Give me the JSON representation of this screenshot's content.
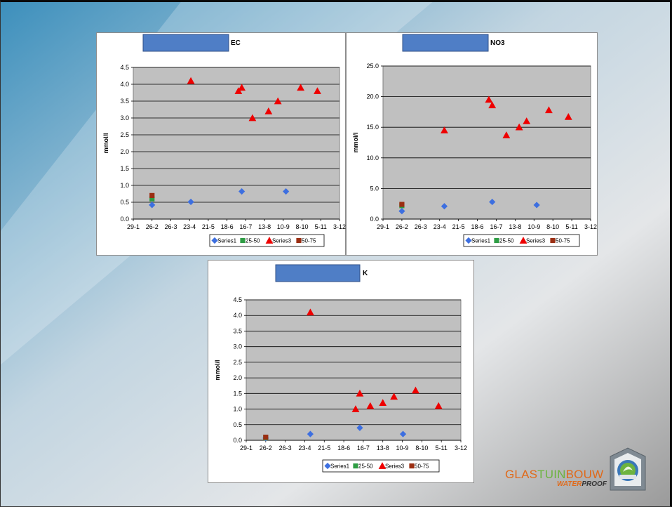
{
  "colors": {
    "plot_bg": "#c0c0c0",
    "grid": "#000000",
    "series1": "#3d6fe0",
    "series2": "#2e9d44",
    "series3": "#ee0000",
    "series4": "#9b2e12",
    "title_box": "#4f7ec6",
    "logo_orange": "#e06a1a",
    "logo_green": "#6cb33f"
  },
  "logo": {
    "part1": "GLAS",
    "part2": "TUIN",
    "part3": "BOUW",
    "part4": "WATER",
    "part5": "PROOF"
  },
  "chart_data": [
    {
      "type": "scatter",
      "title": "EC",
      "ylabel": "mmol/l",
      "ylim": [
        0,
        4.5
      ],
      "yticks": [
        "0.0",
        "0.5",
        "1.0",
        "1.5",
        "2.0",
        "2.5",
        "3.0",
        "3.5",
        "4.0",
        "4.5"
      ],
      "xlim": [
        "29-1",
        "3-12"
      ],
      "xticks": [
        "29-1",
        "26-2",
        "26-3",
        "23-4",
        "21-5",
        "18-6",
        "16-7",
        "13-8",
        "10-9",
        "8-10",
        "5-11",
        "3-12"
      ],
      "legend_position": "bottom",
      "series": [
        {
          "name": "Series1",
          "marker": "diamond",
          "points": [
            [
              "26-2",
              0.42
            ],
            [
              "25-4",
              0.51
            ],
            [
              "10-7",
              0.82
            ],
            [
              "14-9",
              0.82
            ]
          ]
        },
        {
          "name": "25-50",
          "marker": "square",
          "points": [
            [
              "26-2",
              0.6
            ]
          ]
        },
        {
          "name": "Series3",
          "marker": "triangle",
          "points": [
            [
              "25-4",
              4.1
            ],
            [
              "5-7",
              3.8
            ],
            [
              "10-7",
              3.9
            ],
            [
              "26-7",
              3.0
            ],
            [
              "19-8",
              3.2
            ],
            [
              "2-9",
              3.5
            ],
            [
              "6-10",
              3.9
            ],
            [
              "31-10",
              3.8
            ]
          ]
        },
        {
          "name": "50-75",
          "marker": "square",
          "points": [
            [
              "26-2",
              0.7
            ]
          ]
        }
      ]
    },
    {
      "type": "scatter",
      "title": "NO3",
      "ylabel": "mmol/l",
      "ylim": [
        0,
        25
      ],
      "yticks": [
        "0.0",
        "5.0",
        "10.0",
        "15.0",
        "20.0",
        "25.0"
      ],
      "xlim": [
        "29-1",
        "3-12"
      ],
      "xticks": [
        "29-1",
        "26-2",
        "26-3",
        "23-4",
        "21-5",
        "18-6",
        "16-7",
        "13-8",
        "10-9",
        "8-10",
        "5-11",
        "3-12"
      ],
      "legend_position": "bottom",
      "series": [
        {
          "name": "Series1",
          "marker": "diamond",
          "points": [
            [
              "26-2",
              1.3
            ],
            [
              "30-4",
              2.1
            ],
            [
              "10-7",
              2.8
            ],
            [
              "14-9",
              2.3
            ]
          ]
        },
        {
          "name": "25-50",
          "marker": "square",
          "points": [
            [
              "26-2",
              2.2
            ]
          ]
        },
        {
          "name": "Series3",
          "marker": "triangle",
          "points": [
            [
              "30-4",
              14.5
            ],
            [
              "5-7",
              19.5
            ],
            [
              "10-7",
              18.6
            ],
            [
              "31-7",
              13.7
            ],
            [
              "19-8",
              15.0
            ],
            [
              "30-8",
              16.0
            ],
            [
              "2-10",
              17.8
            ],
            [
              "31-10",
              16.7
            ]
          ]
        },
        {
          "name": "50-75",
          "marker": "square",
          "points": [
            [
              "26-2",
              2.4
            ]
          ]
        }
      ]
    },
    {
      "type": "scatter",
      "title": "K",
      "ylabel": "mmol/l",
      "ylim": [
        0,
        4.5
      ],
      "yticks": [
        "0.0",
        "0.5",
        "1.0",
        "1.5",
        "2.0",
        "2.5",
        "3.0",
        "3.5",
        "4.0",
        "4.5"
      ],
      "xlim": [
        "29-1",
        "3-12"
      ],
      "xticks": [
        "29-1",
        "26-2",
        "26-3",
        "23-4",
        "21-5",
        "18-6",
        "16-7",
        "13-8",
        "10-9",
        "8-10",
        "5-11",
        "3-12"
      ],
      "legend_position": "bottom",
      "series": [
        {
          "name": "Series1",
          "marker": "diamond",
          "points": [
            [
              "26-2",
              0.07
            ],
            [
              "1-5",
              0.2
            ],
            [
              "11-7",
              0.4
            ],
            [
              "11-9",
              0.2
            ]
          ]
        },
        {
          "name": "25-50",
          "marker": "square",
          "points": [
            [
              "26-2",
              0.08
            ]
          ]
        },
        {
          "name": "Series3",
          "marker": "triangle",
          "points": [
            [
              "1-5",
              4.1
            ],
            [
              "5-7",
              1.0
            ],
            [
              "11-7",
              1.5
            ],
            [
              "26-7",
              1.1
            ],
            [
              "13-8",
              1.2
            ],
            [
              "29-8",
              1.4
            ],
            [
              "29-9",
              1.6
            ],
            [
              "1-11",
              1.1
            ]
          ]
        },
        {
          "name": "50-75",
          "marker": "square",
          "points": [
            [
              "26-2",
              0.1
            ]
          ]
        }
      ]
    }
  ]
}
